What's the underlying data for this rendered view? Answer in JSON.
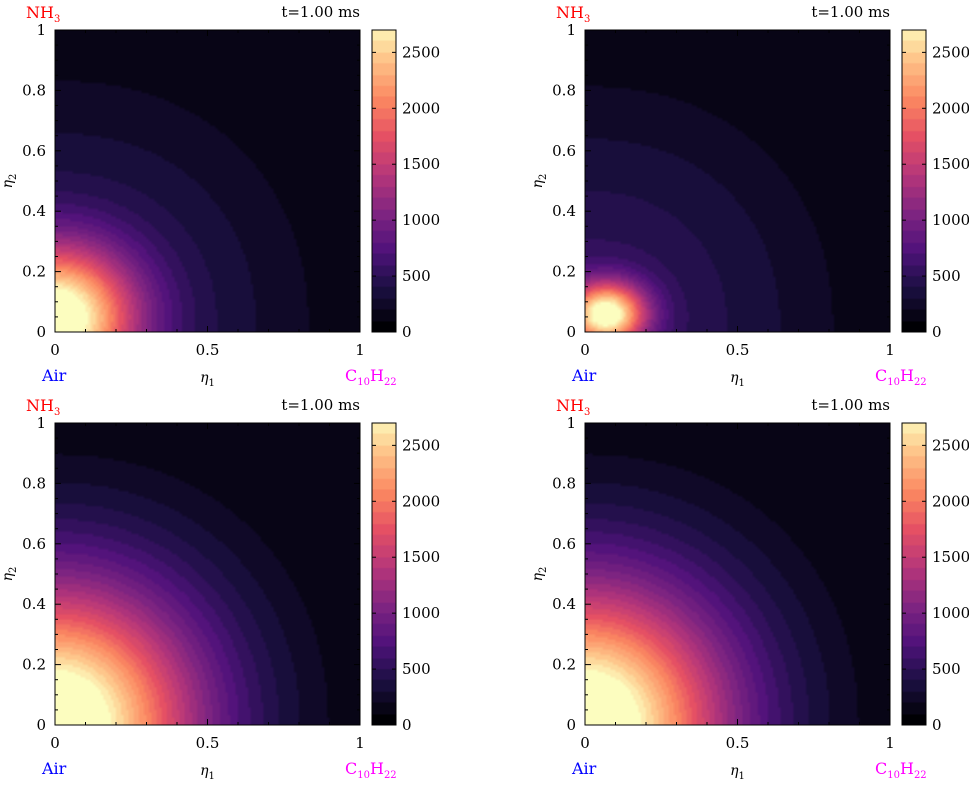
{
  "chart_data": [
    {
      "type": "heatmap",
      "time_label": "t=1.00 ms",
      "x_label": "η",
      "x_label_sub": "1",
      "y_label": "η",
      "y_label_sub": "2",
      "xlim": [
        0,
        1
      ],
      "ylim": [
        0,
        1
      ],
      "x_ticks": [
        "0",
        "0.5",
        "1"
      ],
      "y_ticks": [
        "0",
        "0.2",
        "0.4",
        "0.6",
        "0.8",
        "1"
      ],
      "corner_labels": {
        "top_left": "NH",
        "top_left_sub": "3",
        "bottom_left": "Air",
        "bottom_right": "C",
        "bottom_right_sub1": "10",
        "bottom_right_sub2": "22"
      },
      "colorbar": {
        "min": 0,
        "max": 2700,
        "ticks": [
          "0",
          "500",
          "1000",
          "1500",
          "2000",
          "2500"
        ]
      },
      "hot_spot": {
        "x": 0.0,
        "y": 0.05,
        "peak": 2650,
        "spread_x": 0.32,
        "spread_y": 0.29
      },
      "ambient_boundary": 0.92
    },
    {
      "type": "heatmap",
      "time_label": "t=1.00 ms",
      "x_label": "η",
      "x_label_sub": "1",
      "y_label": "η",
      "y_label_sub": "2",
      "xlim": [
        0,
        1
      ],
      "ylim": [
        0,
        1
      ],
      "x_ticks": [
        "0",
        "0.5",
        "1"
      ],
      "y_ticks": [
        "0",
        "0.2",
        "0.4",
        "0.6",
        "0.8",
        "1"
      ],
      "corner_labels": {
        "top_left": "NH",
        "top_left_sub": "3",
        "bottom_left": "Air",
        "bottom_right": "C",
        "bottom_right_sub1": "10",
        "bottom_right_sub2": "22"
      },
      "colorbar": {
        "min": 0,
        "max": 2700,
        "ticks": [
          "0",
          "500",
          "1000",
          "1500",
          "2000",
          "2500"
        ]
      },
      "hot_spot": {
        "x": 0.07,
        "y": 0.06,
        "peak": 2550,
        "spread_x": 0.16,
        "spread_y": 0.13
      },
      "ambient_boundary": 0.9
    },
    {
      "type": "heatmap",
      "time_label": "t=1.00 ms",
      "x_label": "η",
      "x_label_sub": "1",
      "y_label": "η",
      "y_label_sub": "2",
      "xlim": [
        0,
        1
      ],
      "ylim": [
        0,
        1
      ],
      "x_ticks": [
        "0",
        "0.5",
        "1"
      ],
      "y_ticks": [
        "0",
        "0.2",
        "0.4",
        "0.6",
        "0.8",
        "1"
      ],
      "corner_labels": {
        "top_left": "NH",
        "top_left_sub": "3",
        "bottom_left": "Air",
        "bottom_right": "C",
        "bottom_right_sub1": "10",
        "bottom_right_sub2": "22"
      },
      "colorbar": {
        "min": 0,
        "max": 2700,
        "ticks": [
          "0",
          "500",
          "1000",
          "1500",
          "2000",
          "2500"
        ]
      },
      "hot_spot": {
        "x": 0.0,
        "y": 0.0,
        "peak": 2700,
        "spread_x": 0.55,
        "spread_y": 0.55
      },
      "ambient_boundary": 0.92
    },
    {
      "type": "heatmap",
      "time_label": "t=1.00 ms",
      "x_label": "η",
      "x_label_sub": "1",
      "y_label": "η",
      "y_label_sub": "2",
      "xlim": [
        0,
        1
      ],
      "ylim": [
        0,
        1
      ],
      "x_ticks": [
        "0",
        "0.5",
        "1"
      ],
      "y_ticks": [
        "0",
        "0.2",
        "0.4",
        "0.6",
        "0.8",
        "1"
      ],
      "corner_labels": {
        "top_left": "NH",
        "top_left_sub": "3",
        "bottom_left": "Air",
        "bottom_right": "C",
        "bottom_right_sub1": "10",
        "bottom_right_sub2": "22"
      },
      "colorbar": {
        "min": 0,
        "max": 2700,
        "ticks": [
          "0",
          "500",
          "1000",
          "1500",
          "2000",
          "2500"
        ]
      },
      "hot_spot": {
        "x": 0.0,
        "y": 0.0,
        "peak": 2700,
        "spread_x": 0.55,
        "spread_y": 0.55
      },
      "ambient_boundary": 0.92
    }
  ],
  "colors": {
    "nh3": "#ff0000",
    "air": "#0000ff",
    "fuel": "#ff00ff"
  }
}
